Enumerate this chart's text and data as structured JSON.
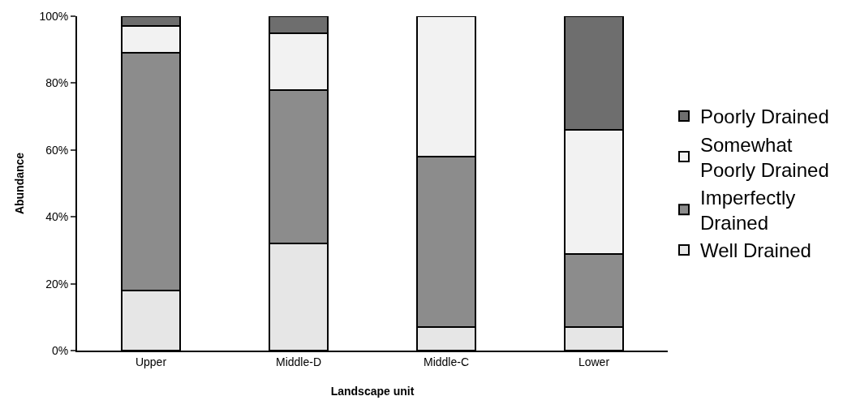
{
  "chart_data": {
    "type": "bar",
    "stacked": true,
    "xlabel": "Landscape unit",
    "ylabel": "Abundance",
    "categories": [
      "Upper",
      "Middle-D",
      "Middle-C",
      "Lower"
    ],
    "series": [
      {
        "name": "Well Drained",
        "color": "#e6e6e6",
        "values": [
          18,
          32,
          7,
          7
        ]
      },
      {
        "name": "Imperfectly Drained",
        "color": "#8c8c8c",
        "values": [
          71,
          46,
          51,
          22
        ]
      },
      {
        "name": "Somewhat Poorly Drained",
        "color": "#f2f2f2",
        "values": [
          8,
          17,
          42,
          37
        ]
      },
      {
        "name": "Poorly Drained",
        "color": "#6e6e6e",
        "values": [
          3,
          5,
          null,
          34
        ]
      }
    ],
    "ylim": [
      0,
      100
    ],
    "yticks": [
      {
        "value": 0,
        "label": "0%"
      },
      {
        "value": 20,
        "label": "20%"
      },
      {
        "value": 40,
        "label": "40%"
      },
      {
        "value": 60,
        "label": "60%"
      },
      {
        "value": 80,
        "label": "80%"
      },
      {
        "value": 100,
        "label": "100%"
      }
    ],
    "legend": "right"
  }
}
